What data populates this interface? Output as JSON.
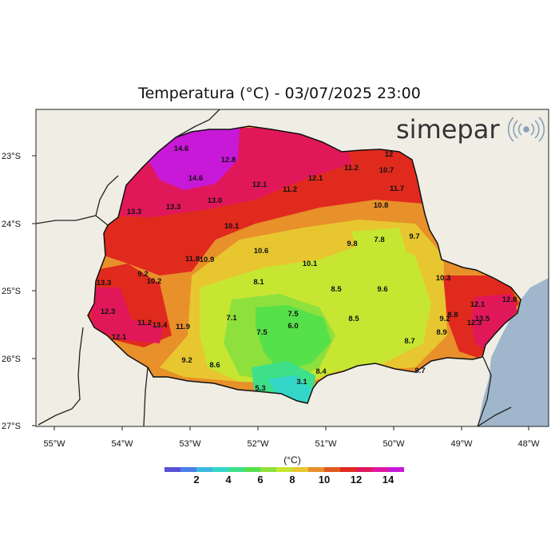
{
  "title": "Temperatura (°C) - 03/07/2025 23:00",
  "brand": "simepar",
  "lat_ticks": [
    "23°S",
    "24°S",
    "25°S",
    "26°S",
    "27°S"
  ],
  "lon_ticks": [
    "55°W",
    "54°W",
    "53°W",
    "52°W",
    "51°W",
    "50°W",
    "49°W",
    "48°W"
  ],
  "colorbar": {
    "unit": "(°C)",
    "labels": [
      "2",
      "4",
      "6",
      "8",
      "10",
      "12",
      "14"
    ],
    "colors": [
      "#5a50d8",
      "#4a7ee8",
      "#3bb8e0",
      "#34d6c8",
      "#3ee08a",
      "#56e04a",
      "#8ee03c",
      "#c6e632",
      "#e8c630",
      "#e8902a",
      "#e05a1e",
      "#e02a1e",
      "#e0185a",
      "#e018a0",
      "#c818d8"
    ]
  },
  "colors": {
    "ocean": "#9fb6cc",
    "land": "#efede4"
  },
  "stations": [
    {
      "label": "14.6"
    },
    {
      "label": "12.8"
    },
    {
      "label": "14.6"
    },
    {
      "label": "12.1"
    },
    {
      "label": "11.2"
    },
    {
      "label": "12.1"
    },
    {
      "label": "11.2"
    },
    {
      "label": "10.7"
    },
    {
      "label": "12"
    },
    {
      "label": "11.7"
    },
    {
      "label": "13.3"
    },
    {
      "label": "13.3"
    },
    {
      "label": "13.0"
    },
    {
      "label": "10.8"
    },
    {
      "label": "10.1"
    },
    {
      "label": "9.8"
    },
    {
      "label": "7.8"
    },
    {
      "label": "9.7"
    },
    {
      "label": "11.8"
    },
    {
      "label": "10.9"
    },
    {
      "label": "10.6"
    },
    {
      "label": "10.1"
    },
    {
      "label": "9.2"
    },
    {
      "label": "10.2"
    },
    {
      "label": "13.3"
    },
    {
      "label": "10.3"
    },
    {
      "label": "8.1"
    },
    {
      "label": "8.5"
    },
    {
      "label": "9.6"
    },
    {
      "label": "12.3"
    },
    {
      "label": "7.1"
    },
    {
      "label": "7.5"
    },
    {
      "label": "6.0"
    },
    {
      "label": "8.5"
    },
    {
      "label": "11.2"
    },
    {
      "label": "13.4"
    },
    {
      "label": "11.9"
    },
    {
      "label": "12.1"
    },
    {
      "label": "7.5"
    },
    {
      "label": "9.2"
    },
    {
      "label": "8.8"
    },
    {
      "label": "12.1"
    },
    {
      "label": "12.8"
    },
    {
      "label": "13.5"
    },
    {
      "label": "12.3"
    },
    {
      "label": "8.9"
    },
    {
      "label": "8.7"
    },
    {
      "label": "9.2"
    },
    {
      "label": "8.6"
    },
    {
      "label": "8.4"
    },
    {
      "label": "5.3"
    },
    {
      "label": "3.1"
    },
    {
      "label": "8.7"
    }
  ]
}
